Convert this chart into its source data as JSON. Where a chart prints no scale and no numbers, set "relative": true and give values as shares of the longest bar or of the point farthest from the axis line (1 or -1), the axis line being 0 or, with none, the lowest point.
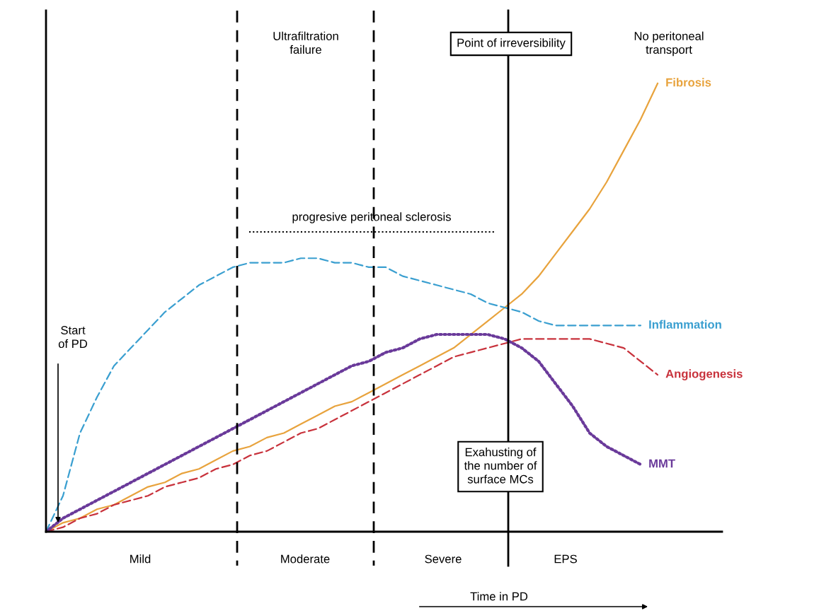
{
  "chart_data": {
    "type": "line",
    "relative": true,
    "marker": "none",
    "categories": [
      null,
      null,
      null,
      null,
      null,
      null,
      null,
      null,
      null,
      null,
      null,
      null,
      null,
      null,
      null,
      null,
      null,
      null,
      null,
      null,
      null,
      null,
      null,
      null,
      null,
      null,
      null,
      null,
      null,
      null,
      null,
      null,
      null,
      null,
      null,
      null,
      null
    ],
    "series": [
      {
        "name": "Fibrosis",
        "color": "#e8a33d",
        "line_style": "solid",
        "values": [
          0,
          0.02,
          0.03,
          0.05,
          0.06,
          0.08,
          0.1,
          0.11,
          0.13,
          0.14,
          0.16,
          0.18,
          0.19,
          0.21,
          0.22,
          0.24,
          0.26,
          0.28,
          0.29,
          0.31,
          0.33,
          0.35,
          0.37,
          0.39,
          0.41,
          0.44,
          0.47,
          0.5,
          0.53,
          0.57,
          0.62,
          0.67,
          0.72,
          0.78,
          0.85,
          0.92,
          1
        ]
      },
      {
        "name": "Inflammation",
        "color": "#3a9fd0",
        "line_style": "dashed",
        "values": [
          0,
          0.08,
          0.22,
          0.3,
          0.37,
          0.41,
          0.45,
          0.49,
          0.52,
          0.55,
          0.57,
          0.59,
          0.6,
          0.6,
          0.6,
          0.61,
          0.61,
          0.6,
          0.6,
          0.59,
          0.59,
          0.57,
          0.56,
          0.55,
          0.54,
          0.53,
          0.51,
          0.5,
          0.49,
          0.47,
          0.46,
          0.46,
          0.46,
          0.46,
          0.46,
          0.46,
          null
        ]
      },
      {
        "name": "Angiogenesis",
        "color": "#c8323c",
        "line_style": "dashed",
        "values": [
          0,
          0.01,
          0.03,
          0.04,
          0.06,
          0.07,
          0.08,
          0.1,
          0.11,
          0.12,
          0.14,
          0.15,
          0.17,
          0.18,
          0.2,
          0.22,
          0.23,
          0.25,
          0.27,
          0.29,
          0.31,
          0.33,
          0.35,
          0.37,
          0.39,
          0.4,
          0.41,
          0.42,
          0.43,
          0.43,
          0.43,
          0.43,
          0.43,
          0.42,
          0.41,
          0.38,
          0.35
        ]
      },
      {
        "name": "MMT",
        "color": "#6a3a9a",
        "line_style": "dotted",
        "values": [
          0,
          0.03,
          0.05,
          0.07,
          0.09,
          0.11,
          0.13,
          0.15,
          0.17,
          0.19,
          0.21,
          0.23,
          0.25,
          0.27,
          0.29,
          0.31,
          0.33,
          0.35,
          0.37,
          0.38,
          0.4,
          0.41,
          0.43,
          0.44,
          0.44,
          0.44,
          0.44,
          0.43,
          0.41,
          0.38,
          0.33,
          0.28,
          0.22,
          0.19,
          0.17,
          0.15,
          null
        ]
      }
    ],
    "annotations": [
      "Ultrafiltration\nfailure",
      "No peritoneal\ntransport",
      "progresive peritoneal sclerosis",
      "Start\nof PD",
      "Exahusting of\nthe number of\nsurface MCs",
      "Mild",
      "Moderate",
      "Severe",
      "EPS",
      "Point of irreversibility",
      "Time in PD"
    ]
  }
}
